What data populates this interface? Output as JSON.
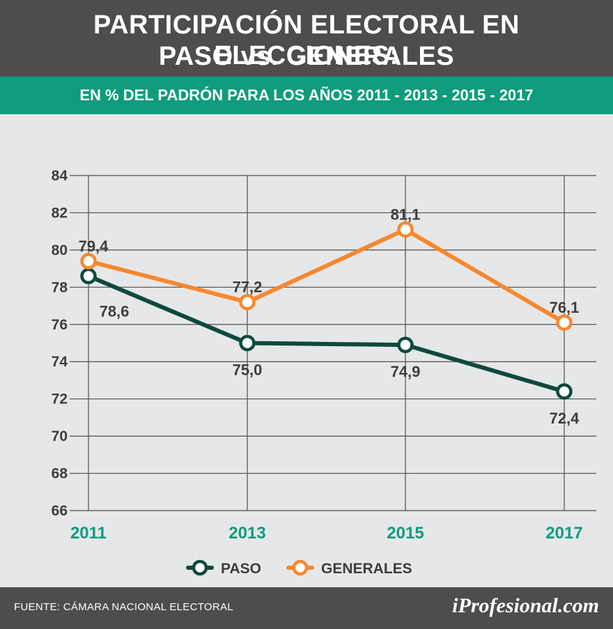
{
  "header": {
    "title_line1": "PARTICIPACIÓN ELECTORAL EN ELECCIONES:",
    "title_line2": "PASO vs. GENERALES",
    "subtitle": "EN % DEL PADRÓN PARA LOS AÑOS 2011 - 2013 - 2015 - 2017"
  },
  "footer": {
    "source": "FUENTE: CÁMARA NACIONAL ELECTORAL",
    "brand": "iProfesional.com"
  },
  "colors": {
    "paso": "#0d4a3a",
    "generales": "#f7882f",
    "accent": "#0f9b7e",
    "header_bg": "#4d4d4f"
  },
  "chart_data": {
    "type": "line",
    "title": "PARTICIPACIÓN ELECTORAL EN ELECCIONES: PASO vs. GENERALES",
    "subtitle": "EN % DEL PADRÓN PARA LOS AÑOS 2011 - 2013 - 2015 - 2017",
    "x": [
      "2011",
      "2013",
      "2015",
      "2017"
    ],
    "y_ticks": [
      66,
      68,
      70,
      72,
      74,
      76,
      78,
      80,
      82,
      84
    ],
    "ylim": [
      66,
      84
    ],
    "grid": true,
    "legend_position": "bottom",
    "series": [
      {
        "name": "PASO",
        "values": [
          78.6,
          75.0,
          74.9,
          72.4
        ],
        "labels": [
          "78,6",
          "75,0",
          "74,9",
          "72,4"
        ]
      },
      {
        "name": "GENERALES",
        "values": [
          79.4,
          77.2,
          81.1,
          76.1
        ],
        "labels": [
          "79,4",
          "77,2",
          "81,1",
          "76,1"
        ]
      }
    ]
  }
}
